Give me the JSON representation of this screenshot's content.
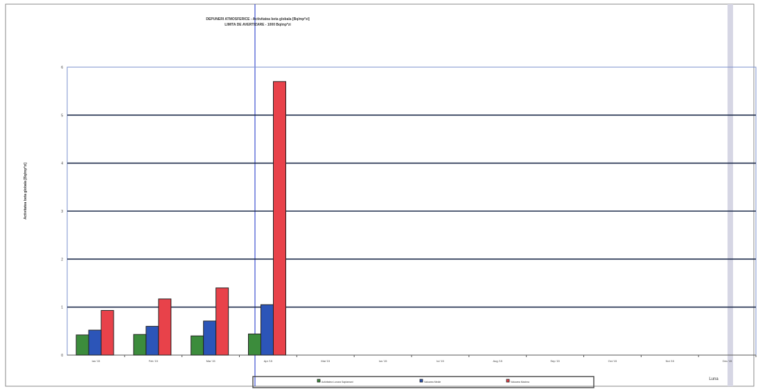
{
  "chart_data": {
    "type": "bar",
    "title": "DEPUNERI ATMOSFERICE  - Activitatea beta globala [Bq/mp*zi]",
    "subtitle": "LIMITA DE AVERTIZARE - 1000 Bq/mp*zi",
    "ylabel": "Activitatea beta globala [Bq/mp*zi]",
    "xlabel": "Luna",
    "ylim": [
      0,
      6
    ],
    "yticks": [
      "0",
      "1",
      "2",
      "3",
      "4",
      "5",
      "6"
    ],
    "grid": true,
    "legend_position": "bottom-center",
    "categories": [
      "Ian.'15",
      "Feb.'15",
      "Mar.'15",
      "Apr.'15",
      "Mai.'15",
      "Iun.'15",
      "Iul.'15",
      "Aug.'15",
      "Sep.'15",
      "Oct.'15",
      "Noi.'15",
      "Dec.'15"
    ],
    "series": [
      {
        "name": "Activitatea Lunara Saptamani",
        "color": "#3c8c3c",
        "values": [
          0.42,
          0.43,
          0.4,
          0.44,
          null,
          null,
          null,
          null,
          null,
          null,
          null,
          null
        ]
      },
      {
        "name": "Valoarea Medie",
        "color": "#2c55b8",
        "values": [
          0.52,
          0.6,
          0.71,
          1.05,
          null,
          null,
          null,
          null,
          null,
          null,
          null,
          null
        ]
      },
      {
        "name": "Valoarea Maxima",
        "color": "#e8424a",
        "values": [
          0.93,
          1.17,
          1.4,
          5.7,
          null,
          null,
          null,
          null,
          null,
          null,
          null,
          null
        ]
      }
    ]
  }
}
